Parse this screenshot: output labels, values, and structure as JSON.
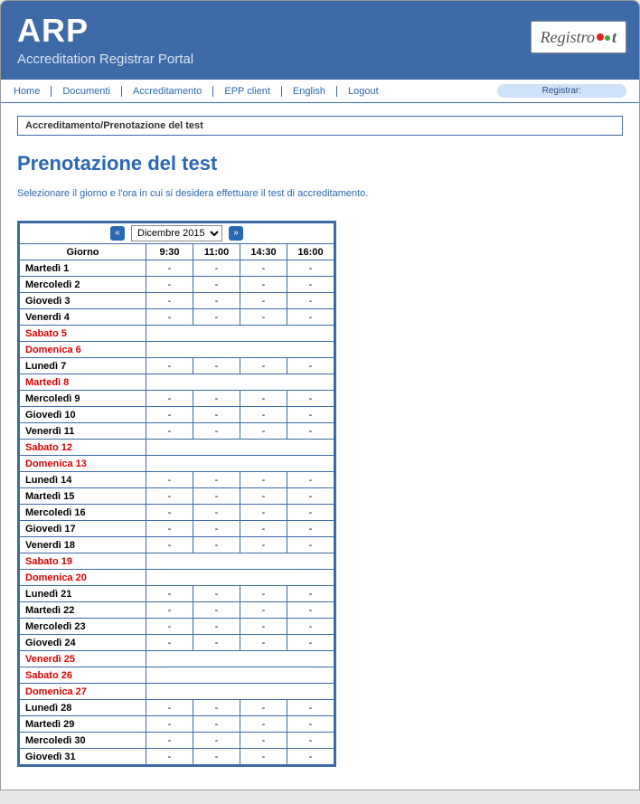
{
  "header": {
    "title": "ARP",
    "subtitle": "Accreditation Registrar Portal",
    "logo_text": "Registro",
    "logo_suffix": "t"
  },
  "nav": {
    "items": [
      "Home",
      "Documenti",
      "Accreditamento",
      "EPP client",
      "English",
      "Logout"
    ],
    "registrar_label": "Registrar:"
  },
  "breadcrumb": "Accreditamento/Prenotazione del test",
  "page_title": "Prenotazione del test",
  "instructions": "Selezionare il giorno e l'ora in cui si desidera effettuare il test di accreditamento.",
  "calendar": {
    "month_label": "Dicembre 2015",
    "prev_symbol": "«",
    "next_symbol": "»",
    "header_day": "Giorno",
    "time_slots": [
      "9:30",
      "11:00",
      "14:30",
      "16:00"
    ],
    "rows": [
      {
        "label": "Martedì 1",
        "type": "work",
        "slots": [
          "-",
          "-",
          "-",
          "-"
        ]
      },
      {
        "label": "Mercoledì 2",
        "type": "work",
        "slots": [
          "-",
          "-",
          "-",
          "-"
        ]
      },
      {
        "label": "Giovedì 3",
        "type": "work",
        "slots": [
          "-",
          "-",
          "-",
          "-"
        ]
      },
      {
        "label": "Venerdì 4",
        "type": "work",
        "slots": [
          "-",
          "-",
          "-",
          "-"
        ]
      },
      {
        "label": "Sabato 5",
        "type": "weekend"
      },
      {
        "label": "Domenica 6",
        "type": "weekend"
      },
      {
        "label": "Lunedì 7",
        "type": "work",
        "slots": [
          "-",
          "-",
          "-",
          "-"
        ]
      },
      {
        "label": "Martedì 8",
        "type": "holiday"
      },
      {
        "label": "Mercoledì 9",
        "type": "work",
        "slots": [
          "-",
          "-",
          "-",
          "-"
        ]
      },
      {
        "label": "Giovedì 10",
        "type": "work",
        "slots": [
          "-",
          "-",
          "-",
          "-"
        ]
      },
      {
        "label": "Venerdì 11",
        "type": "work",
        "slots": [
          "-",
          "-",
          "-",
          "-"
        ]
      },
      {
        "label": "Sabato 12",
        "type": "weekend"
      },
      {
        "label": "Domenica 13",
        "type": "weekend"
      },
      {
        "label": "Lunedì 14",
        "type": "work",
        "slots": [
          "-",
          "-",
          "-",
          "-"
        ]
      },
      {
        "label": "Martedì 15",
        "type": "work",
        "slots": [
          "-",
          "-",
          "-",
          "-"
        ]
      },
      {
        "label": "Mercoledì 16",
        "type": "work",
        "slots": [
          "-",
          "-",
          "-",
          "-"
        ]
      },
      {
        "label": "Giovedì 17",
        "type": "work",
        "slots": [
          "-",
          "-",
          "-",
          "-"
        ]
      },
      {
        "label": "Venerdì 18",
        "type": "work",
        "slots": [
          "-",
          "-",
          "-",
          "-"
        ]
      },
      {
        "label": "Sabato 19",
        "type": "weekend"
      },
      {
        "label": "Domenica 20",
        "type": "weekend"
      },
      {
        "label": "Lunedì 21",
        "type": "work",
        "slots": [
          "-",
          "-",
          "-",
          "-"
        ]
      },
      {
        "label": "Martedì 22",
        "type": "work",
        "slots": [
          "-",
          "-",
          "-",
          "-"
        ]
      },
      {
        "label": "Mercoledì 23",
        "type": "work",
        "slots": [
          "-",
          "-",
          "-",
          "-"
        ]
      },
      {
        "label": "Giovedì 24",
        "type": "work",
        "slots": [
          "-",
          "-",
          "-",
          "-"
        ]
      },
      {
        "label": "Venerdì 25",
        "type": "holiday"
      },
      {
        "label": "Sabato 26",
        "type": "weekend"
      },
      {
        "label": "Domenica 27",
        "type": "weekend"
      },
      {
        "label": "Lunedì 28",
        "type": "work",
        "slots": [
          "-",
          "-",
          "-",
          "-"
        ]
      },
      {
        "label": "Martedì 29",
        "type": "work",
        "slots": [
          "-",
          "-",
          "-",
          "-"
        ]
      },
      {
        "label": "Mercoledì 30",
        "type": "work",
        "slots": [
          "-",
          "-",
          "-",
          "-"
        ]
      },
      {
        "label": "Giovedì 31",
        "type": "work",
        "slots": [
          "-",
          "-",
          "-",
          "-"
        ]
      }
    ]
  },
  "colors": {
    "primary": "#3e6aa7",
    "link": "#2a68b1",
    "weekend": "#d00",
    "pill_bg": "#cfe2f9"
  }
}
